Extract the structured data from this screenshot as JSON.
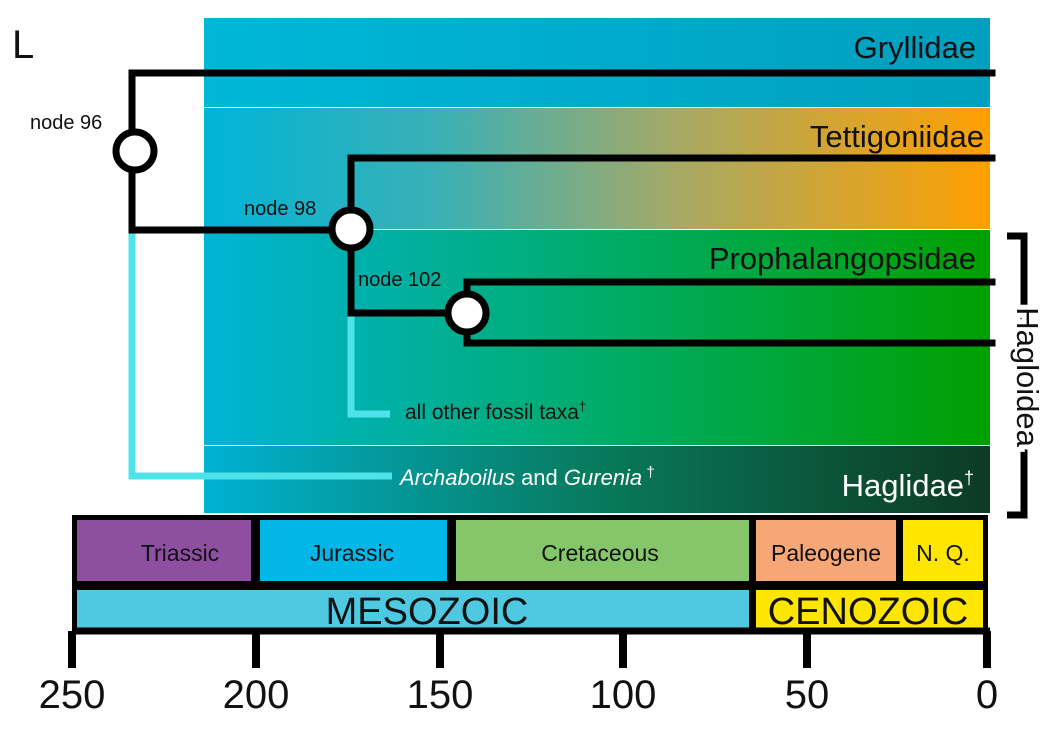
{
  "panel_label": "L",
  "bands": {
    "gryllidae": "Gryllidae",
    "tettigoniidae": "Tettigoniidae",
    "prophalangopsidae": "Prophalangopsidae",
    "haglidae": "Haglidae",
    "haglidae_mark": "†"
  },
  "nodes": {
    "n96": "node 96",
    "n98": "node 98",
    "n102": "node 102"
  },
  "fossil_lines": {
    "other": "all other fossil taxa",
    "other_mark": "†",
    "arch_genus1": "Archaboilus",
    "arch_and": " and ",
    "arch_genus2": "Gurenia",
    "arch_mark": " †"
  },
  "bracket_label": "Hagloidea",
  "periods": [
    {
      "label": "Triassic",
      "color": "#8e4fa0"
    },
    {
      "label": "Jurassic",
      "color": "#00b7e7"
    },
    {
      "label": "Cretaceous",
      "color": "#86c66b"
    },
    {
      "label": "Paleogene",
      "color": "#f7a675"
    },
    {
      "label": "N. Q.",
      "color": "#ffe600"
    }
  ],
  "eras": [
    {
      "label": "MESOZOIC",
      "color": "#4ec9e1"
    },
    {
      "label": "CENOZOIC",
      "color": "#ffe600"
    }
  ],
  "axis_ticks": [
    "250",
    "200",
    "150",
    "100",
    "50",
    "0"
  ],
  "colors": {
    "band_blue": "#00b2d6",
    "band_orange": "#ffa000",
    "band_green": "#00a000",
    "band_dark": "#0e3d24",
    "fossil_line": "#4ee3e8"
  }
}
